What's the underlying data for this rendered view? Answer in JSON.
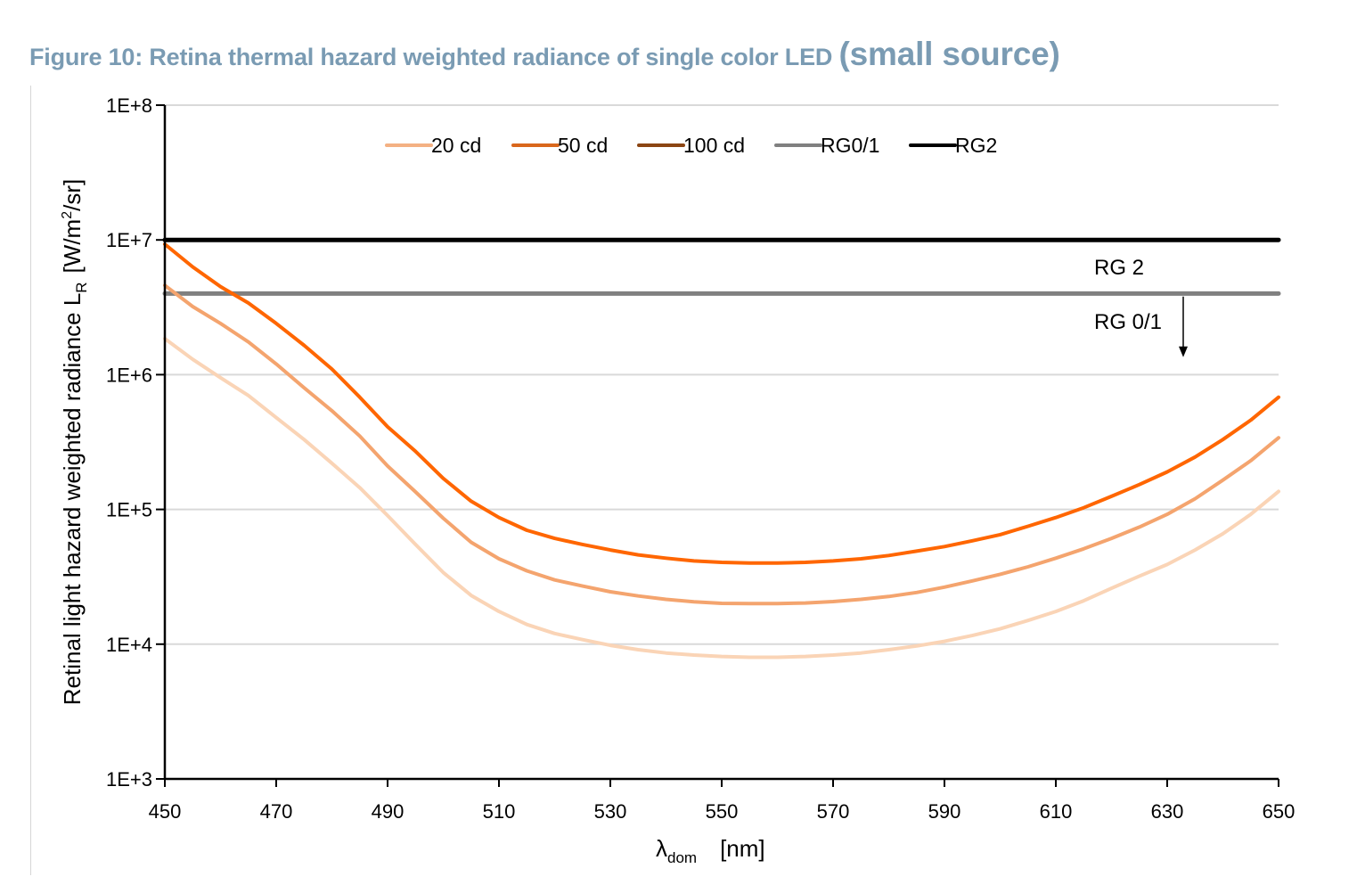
{
  "figure": {
    "title_main": "Figure 10: Retina thermal hazard weighted radiance of single color LED ",
    "title_suffix": "(small source)",
    "title_color": "#7a9bb3"
  },
  "chart_data": {
    "type": "line",
    "title": "Figure 10: Retina thermal hazard weighted radiance of single color LED (small source)",
    "xlabel": "λdom [nm]",
    "xlabel_main": "λ",
    "xlabel_sub": "dom",
    "xlabel_unit": "[nm]",
    "ylabel": "Retinal light hazard weighted radiance L_R [W/m²/sr]",
    "ylabel_main": "Retinal light hazard weighted radiance L",
    "ylabel_sub": "R",
    "ylabel_unit_pre": "[W/m",
    "ylabel_unit_sup": "2",
    "ylabel_unit_post": "/sr]",
    "xlim": [
      450,
      650
    ],
    "ylim": [
      1000,
      100000000
    ],
    "yscale": "log",
    "grid": "horizontal",
    "legend_position": "top-center",
    "x_ticks": [
      450,
      470,
      490,
      510,
      530,
      550,
      570,
      590,
      610,
      630,
      650
    ],
    "x_tick_labels": [
      "450",
      "470",
      "490",
      "510",
      "530",
      "550",
      "570",
      "590",
      "610",
      "630",
      "650"
    ],
    "y_ticks": [
      1000,
      10000,
      100000,
      1000000,
      10000000,
      100000000
    ],
    "y_tick_labels": [
      "1E+3",
      "1E+4",
      "1E+5",
      "1E+6",
      "1E+7",
      "1E+8"
    ],
    "x": [
      450,
      455,
      460,
      465,
      470,
      475,
      480,
      485,
      490,
      495,
      500,
      505,
      510,
      515,
      520,
      525,
      530,
      535,
      540,
      545,
      550,
      555,
      560,
      565,
      570,
      575,
      580,
      585,
      590,
      595,
      600,
      605,
      610,
      615,
      620,
      625,
      630,
      635,
      640,
      645,
      650
    ],
    "series": [
      {
        "name": "20 cd",
        "legend_color": "#f4b183",
        "line_color": "#fad4b6",
        "values": [
          1850000,
          1300000,
          950000,
          700000,
          480000,
          330000,
          220000,
          145000,
          90000,
          55000,
          34000,
          23000,
          17500,
          14000,
          12000,
          10800,
          9800,
          9100,
          8600,
          8300,
          8100,
          8000,
          8000,
          8100,
          8300,
          8600,
          9100,
          9700,
          10500,
          11600,
          13000,
          15000,
          17500,
          21000,
          26000,
          32000,
          39000,
          50000,
          66000,
          92000,
          136000
        ]
      },
      {
        "name": "50 cd",
        "legend_color": "#d9671c",
        "line_color": "#f4a46e",
        "values": [
          4600000,
          3200000,
          2400000,
          1750000,
          1200000,
          800000,
          540000,
          350000,
          210000,
          135000,
          86000,
          57000,
          43000,
          35000,
          30000,
          27000,
          24500,
          22800,
          21500,
          20600,
          20100,
          20000,
          20000,
          20200,
          20700,
          21500,
          22600,
          24200,
          26500,
          29500,
          33000,
          37500,
          43500,
          51000,
          61000,
          74000,
          92000,
          120000,
          165000,
          230000,
          340000
        ]
      },
      {
        "name": "100 cd",
        "legend_color": "#8b4513",
        "line_color": "#ff6600",
        "values": [
          9300000,
          6300000,
          4500000,
          3400000,
          2400000,
          1650000,
          1100000,
          680000,
          410000,
          270000,
          170000,
          115000,
          87000,
          70000,
          61000,
          55000,
          50000,
          46000,
          43500,
          41500,
          40500,
          40000,
          40000,
          40500,
          41500,
          43000,
          45500,
          49000,
          53000,
          58500,
          65000,
          75000,
          87000,
          103000,
          125000,
          153000,
          190000,
          245000,
          330000,
          460000,
          680000
        ]
      },
      {
        "name": "RG0/1",
        "legend_color": "#808080",
        "line_color": "#808080",
        "values": [
          4000000,
          4000000,
          4000000,
          4000000,
          4000000,
          4000000,
          4000000,
          4000000,
          4000000,
          4000000,
          4000000,
          4000000,
          4000000,
          4000000,
          4000000,
          4000000,
          4000000,
          4000000,
          4000000,
          4000000,
          4000000,
          4000000,
          4000000,
          4000000,
          4000000,
          4000000,
          4000000,
          4000000,
          4000000,
          4000000,
          4000000,
          4000000,
          4000000,
          4000000,
          4000000,
          4000000,
          4000000,
          4000000,
          4000000,
          4000000,
          4000000
        ]
      },
      {
        "name": "RG2",
        "legend_color": "#000000",
        "line_color": "#000000",
        "values": [
          10000000,
          10000000,
          10000000,
          10000000,
          10000000,
          10000000,
          10000000,
          10000000,
          10000000,
          10000000,
          10000000,
          10000000,
          10000000,
          10000000,
          10000000,
          10000000,
          10000000,
          10000000,
          10000000,
          10000000,
          10000000,
          10000000,
          10000000,
          10000000,
          10000000,
          10000000,
          10000000,
          10000000,
          10000000,
          10000000,
          10000000,
          10000000,
          10000000,
          10000000,
          10000000,
          10000000,
          10000000,
          10000000,
          10000000,
          10000000,
          10000000
        ]
      }
    ],
    "annotations": [
      {
        "text": "RG 2",
        "x": 632,
        "y": 6000000
      },
      {
        "text": "RG 0/1",
        "x": 632,
        "y": 2400000,
        "arrow": "down",
        "arrow_from_y": 3800000,
        "arrow_to_y": 1350000
      }
    ]
  }
}
